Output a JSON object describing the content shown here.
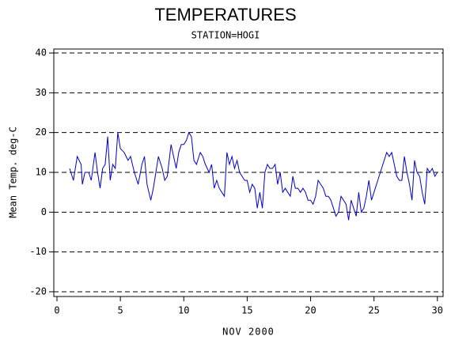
{
  "chart_data": {
    "type": "line",
    "title": "TEMPERATURES",
    "subtitle": "STATION=HOGI",
    "x_label": "NOV 2000",
    "y_label": "Mean Temp. deg-C",
    "xlim": [
      -0.25,
      30.45
    ],
    "xticks": [
      0,
      5,
      10,
      15,
      20,
      25,
      30
    ],
    "ylim": [
      -21.2,
      41
    ],
    "yticks": [
      -20,
      -10,
      0,
      10,
      20,
      30,
      40
    ],
    "grid": true,
    "series": [
      {
        "name": "Mean Temp",
        "color": "#0000cc",
        "x": [
          1,
          1.3,
          1.6,
          1.9,
          2.0,
          2.2,
          2.5,
          2.7,
          3.0,
          3.2,
          3.4,
          3.6,
          3.8,
          4.0,
          4.2,
          4.4,
          4.6,
          4.8,
          5.0,
          5.3,
          5.6,
          5.8,
          6.1,
          6.4,
          6.7,
          6.9,
          7.1,
          7.4,
          7.6,
          7.8,
          8.0,
          8.3,
          8.5,
          8.7,
          9.0,
          9.2,
          9.4,
          9.6,
          9.8,
          10.0,
          10.2,
          10.4,
          10.6,
          10.8,
          11.0,
          11.3,
          11.5,
          11.7,
          12.0,
          12.2,
          12.4,
          12.6,
          12.8,
          13.0,
          13.2,
          13.4,
          13.6,
          13.8,
          14.0,
          14.2,
          14.4,
          14.6,
          14.8,
          15.0,
          15.2,
          15.4,
          15.6,
          15.8,
          16.0,
          16.2,
          16.4,
          16.6,
          16.8,
          17.0,
          17.2,
          17.4,
          17.6,
          17.8,
          18.0,
          18.2,
          18.4,
          18.6,
          18.8,
          19.0,
          19.2,
          19.4,
          19.6,
          19.8,
          20.0,
          20.2,
          20.4,
          20.6,
          20.8,
          21.0,
          21.2,
          21.4,
          21.6,
          21.8,
          22.0,
          22.2,
          22.4,
          22.6,
          22.8,
          23.0,
          23.2,
          23.4,
          23.6,
          23.8,
          24.0,
          24.2,
          24.4,
          24.6,
          24.8,
          25.0,
          25.2,
          25.4,
          25.6,
          25.8,
          26.0,
          26.2,
          26.4,
          26.6,
          26.8,
          27.0,
          27.2,
          27.4,
          27.6,
          27.8,
          28.0,
          28.2,
          28.4,
          28.6,
          28.8,
          29.0,
          29.2,
          29.4,
          29.6,
          29.8,
          30.0
        ],
        "values": [
          11,
          8,
          14,
          12,
          7,
          10,
          10,
          8,
          15,
          10,
          6,
          11,
          12,
          19,
          8,
          12,
          11,
          20,
          16,
          15,
          13,
          14,
          10,
          7,
          12,
          14,
          7,
          3,
          6,
          10,
          14,
          11,
          8,
          9,
          17,
          14,
          11,
          15,
          17,
          17,
          18,
          20,
          19,
          13,
          12,
          15,
          14,
          12,
          10,
          12,
          6,
          8,
          6,
          5,
          4,
          15,
          12,
          14,
          11,
          13,
          10,
          9,
          8,
          8,
          5,
          7,
          6,
          1,
          5,
          1,
          10,
          12,
          11,
          11,
          12,
          7,
          10,
          5,
          6,
          5,
          4,
          9,
          6,
          6,
          5,
          6,
          5,
          3,
          3,
          2,
          4,
          8,
          7,
          6,
          4,
          4,
          3,
          1,
          -1,
          0,
          4,
          3,
          2,
          -2,
          3,
          1,
          -1,
          5,
          0,
          1,
          4,
          8,
          3,
          5,
          7,
          9,
          11,
          13,
          15,
          14,
          15,
          12,
          9,
          8,
          8,
          14,
          10,
          7,
          3,
          13,
          10,
          9,
          5,
          2,
          11,
          10,
          11,
          9,
          10
        ]
      }
    ]
  }
}
